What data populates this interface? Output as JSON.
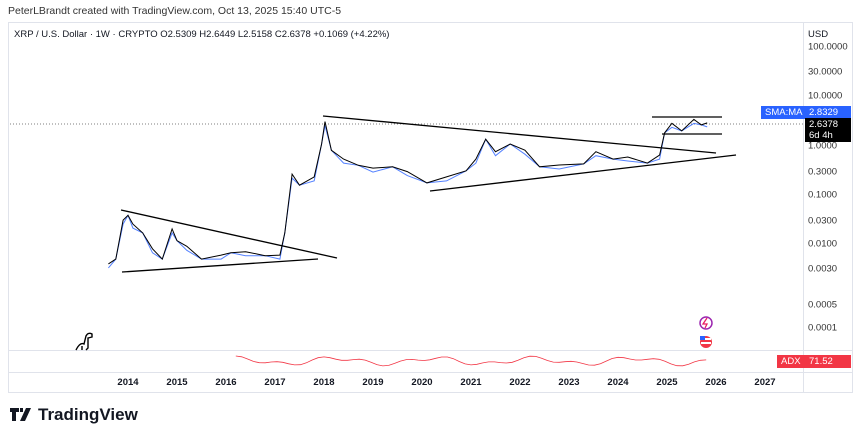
{
  "caption": "PeterLBrandt created with TradingView.com, Oct 13, 2025 15:40 UTC-5",
  "legend": "XRP / U.S. Dollar · 1W · CRYPTO  O2.5309  H2.6449  L2.5158  C2.6378  +0.1069 (+4.22%)",
  "currency": "USD",
  "price_ticks": [
    "100.0000",
    "30.0000",
    "10.0000",
    "1.0000",
    "0.3000",
    "0.1000",
    "0.0300",
    "0.0100",
    "0.0030",
    "0.0005",
    "0.0001"
  ],
  "years": [
    "2014",
    "2015",
    "2016",
    "2017",
    "2018",
    "2019",
    "2020",
    "2021",
    "2022",
    "2023",
    "2024",
    "2025",
    "2026",
    "2027"
  ],
  "sma_label": "SMA:MA",
  "sma_value": "2.8329",
  "close_value": "2.6378",
  "countdown": "6d 4h",
  "adx_label": "ADX",
  "adx_value": "71.52",
  "brand": "TradingView",
  "colors": {
    "sma": "#2962ff",
    "adx": "#f23645",
    "price": "#000000",
    "ma": "#2962ff"
  }
}
